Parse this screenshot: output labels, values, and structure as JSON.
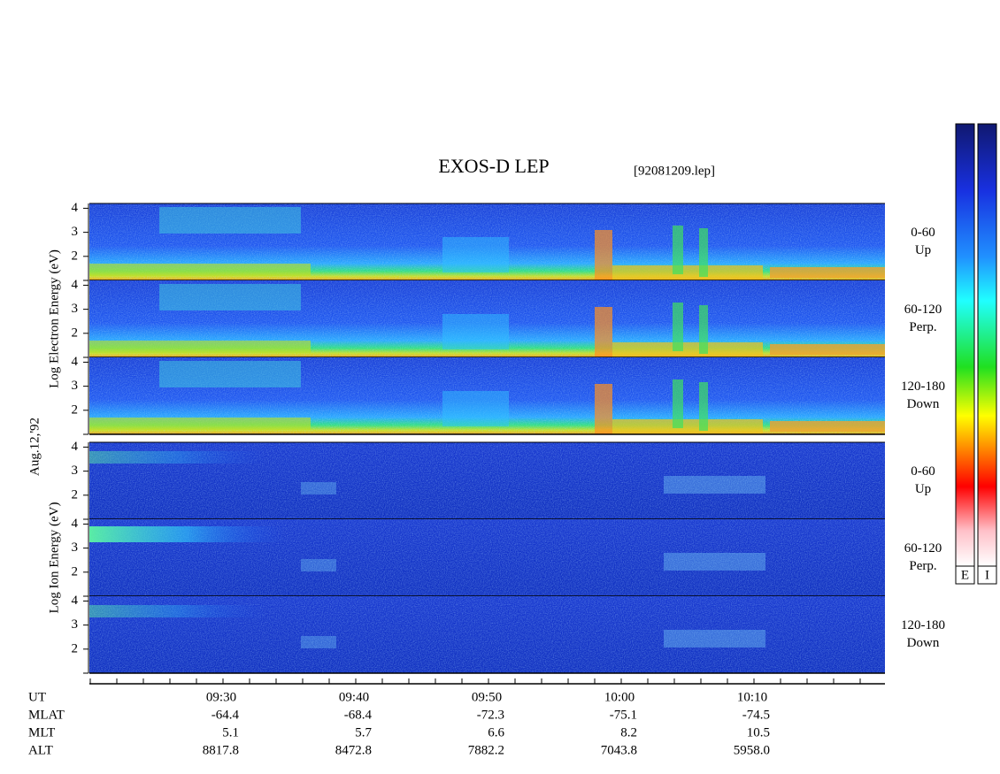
{
  "header": {
    "title": "EXOS-D LEP",
    "file": "[92081209.lep]"
  },
  "date": "Aug.12,'92",
  "ylim": [
    1,
    4.2
  ],
  "yticks": [
    2,
    3,
    4
  ],
  "groups": [
    {
      "label": "Log Electron Energy (eV)",
      "panels": [
        {
          "angle": "0-60",
          "direction": "Up"
        },
        {
          "angle": "60-120",
          "direction": "Perp."
        },
        {
          "angle": "120-180",
          "direction": "Down"
        }
      ]
    },
    {
      "label": "Log Ion Energy (eV)",
      "panels": [
        {
          "angle": "0-60",
          "direction": "Up"
        },
        {
          "angle": "60-120",
          "direction": "Perp."
        },
        {
          "angle": "120-180",
          "direction": "Down"
        }
      ]
    }
  ],
  "footer": {
    "row_labels": [
      "UT",
      "MLAT",
      "MLT",
      "ALT"
    ],
    "columns": [
      [
        "09:30",
        "-64.4",
        "5.1",
        "8817.8"
      ],
      [
        "09:40",
        "-68.4",
        "5.7",
        "8472.8"
      ],
      [
        "09:50",
        "-72.3",
        "6.6",
        "7882.2"
      ],
      [
        "10:00",
        "-75.1",
        "8.2",
        "7043.8"
      ],
      [
        "10:10",
        "-74.5",
        "10.5",
        "5958.0"
      ]
    ]
  },
  "colorbar_labels": [
    "E",
    "I"
  ]
}
